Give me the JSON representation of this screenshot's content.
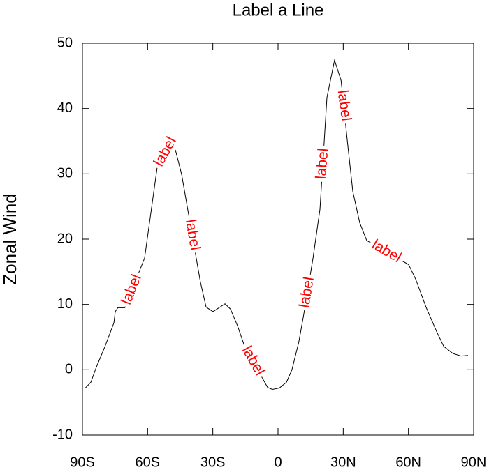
{
  "chart_data": {
    "type": "line",
    "title": "Label a Line",
    "y_label": "Zonal Wind",
    "x": [
      -88.7,
      -86.1,
      -83.6,
      -79.7,
      -75.5,
      -74.9,
      -73.7,
      -70.5,
      -61.4,
      -55.6,
      -48.5,
      -44.4,
      -35.7,
      -33.1,
      -29.9,
      -24.4,
      -21.9,
      -18.6,
      -15.4,
      -4.8,
      -2.6,
      0.6,
      3.9,
      6.4,
      9.6,
      11.9,
      16.1,
      19.3,
      22.5,
      26.0,
      29.0,
      31.8,
      34.4,
      37.6,
      40.8,
      60.1,
      63.3,
      68.1,
      72.9,
      76.2,
      80.4,
      84.2,
      87.4
    ],
    "series": [
      {
        "color": "#000000",
        "values": [
          -2.8,
          -1.9,
          0.4,
          3.5,
          7.2,
          8.9,
          9.5,
          9.5,
          17.1,
          31.0,
          35.3,
          30.0,
          13.4,
          9.6,
          8.9,
          10.1,
          9.3,
          6.7,
          3.6,
          -2.7,
          -3.0,
          -2.8,
          -1.9,
          0.0,
          4.3,
          8.6,
          17.1,
          24.6,
          41.7,
          47.4,
          44.3,
          35.3,
          27.3,
          22.5,
          19.8,
          16.1,
          13.9,
          9.6,
          5.9,
          3.6,
          2.5,
          2.1,
          2.2
        ]
      }
    ],
    "line_labels": [
      {
        "text": "label",
        "x": -67.2
      },
      {
        "text": "label",
        "x": -51.7
      },
      {
        "text": "label",
        "x": -39.5
      },
      {
        "text": "label",
        "x": -11.6
      },
      {
        "text": "label",
        "x": 13.5
      },
      {
        "text": "label",
        "x": 20.6
      },
      {
        "text": "label",
        "x": 30.2
      },
      {
        "text": "label",
        "x": 49.8
      }
    ],
    "label_color": "#ff0000",
    "xlim": [
      -90,
      90
    ],
    "xticks": [
      {
        "value": -90,
        "label": "90S"
      },
      {
        "value": -60,
        "label": "60S"
      },
      {
        "value": -30,
        "label": "30S"
      },
      0,
      {
        "value": 30,
        "label": "30N"
      },
      {
        "value": 60,
        "label": "60N"
      },
      {
        "value": 90,
        "label": "90N"
      }
    ],
    "ylim": [
      -10,
      50
    ],
    "yticks": [
      -10,
      0,
      10,
      20,
      30,
      40,
      50
    ]
  }
}
